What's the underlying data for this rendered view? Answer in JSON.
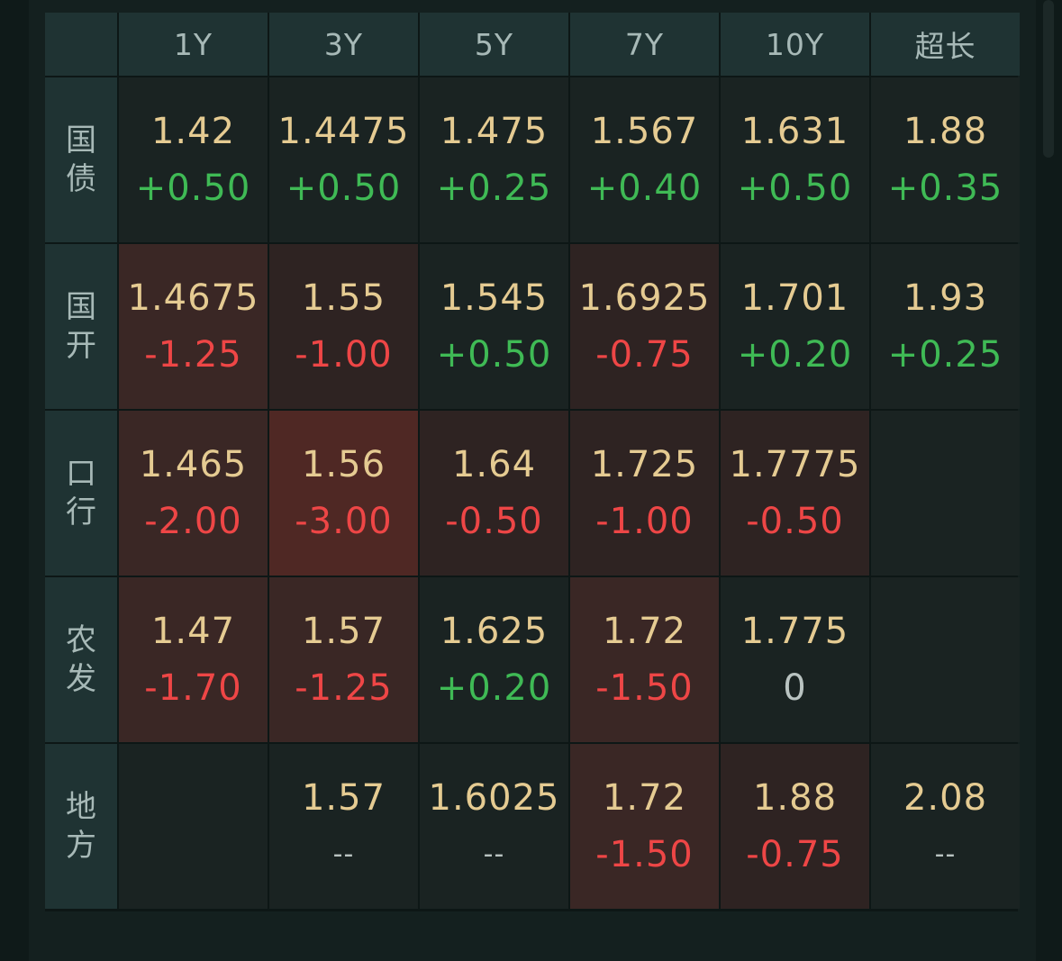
{
  "columns": [
    "1Y",
    "3Y",
    "5Y",
    "7Y",
    "10Y",
    "超长"
  ],
  "rows": [
    {
      "label": "国债",
      "chars": [
        "国",
        "债"
      ],
      "cells": [
        {
          "yield": "1.42",
          "change": "+0.50",
          "dir": "up",
          "heat": "none"
        },
        {
          "yield": "1.4475",
          "change": "+0.50",
          "dir": "up",
          "heat": "none"
        },
        {
          "yield": "1.475",
          "change": "+0.25",
          "dir": "up",
          "heat": "none"
        },
        {
          "yield": "1.567",
          "change": "+0.40",
          "dir": "up",
          "heat": "none"
        },
        {
          "yield": "1.631",
          "change": "+0.50",
          "dir": "up",
          "heat": "none"
        },
        {
          "yield": "1.88",
          "change": "+0.35",
          "dir": "up",
          "heat": "none"
        }
      ]
    },
    {
      "label": "国开",
      "chars": [
        "国",
        "开"
      ],
      "cells": [
        {
          "yield": "1.4675",
          "change": "-1.25",
          "dir": "down",
          "heat": "h2"
        },
        {
          "yield": "1.55",
          "change": "-1.00",
          "dir": "down",
          "heat": "h1"
        },
        {
          "yield": "1.545",
          "change": "+0.50",
          "dir": "up",
          "heat": "none"
        },
        {
          "yield": "1.6925",
          "change": "-0.75",
          "dir": "down",
          "heat": "h1"
        },
        {
          "yield": "1.701",
          "change": "+0.20",
          "dir": "up",
          "heat": "none"
        },
        {
          "yield": "1.93",
          "change": "+0.25",
          "dir": "up",
          "heat": "none"
        }
      ]
    },
    {
      "label": "口行",
      "chars": [
        "口",
        "行"
      ],
      "cells": [
        {
          "yield": "1.465",
          "change": "-2.00",
          "dir": "down",
          "heat": "h2"
        },
        {
          "yield": "1.56",
          "change": "-3.00",
          "dir": "down",
          "heat": "h3"
        },
        {
          "yield": "1.64",
          "change": "-0.50",
          "dir": "down",
          "heat": "h1"
        },
        {
          "yield": "1.725",
          "change": "-1.00",
          "dir": "down",
          "heat": "h1"
        },
        {
          "yield": "1.7775",
          "change": "-0.50",
          "dir": "down",
          "heat": "h1"
        },
        {
          "yield": "",
          "change": "",
          "dir": "none",
          "heat": "none"
        }
      ]
    },
    {
      "label": "农发",
      "chars": [
        "农",
        "发"
      ],
      "cells": [
        {
          "yield": "1.47",
          "change": "-1.70",
          "dir": "down",
          "heat": "h2"
        },
        {
          "yield": "1.57",
          "change": "-1.25",
          "dir": "down",
          "heat": "h2"
        },
        {
          "yield": "1.625",
          "change": "+0.20",
          "dir": "up",
          "heat": "none"
        },
        {
          "yield": "1.72",
          "change": "-1.50",
          "dir": "down",
          "heat": "h2"
        },
        {
          "yield": "1.775",
          "change": "0",
          "dir": "zero",
          "heat": "none"
        },
        {
          "yield": "",
          "change": "",
          "dir": "none",
          "heat": "none"
        }
      ]
    },
    {
      "label": "地方",
      "chars": [
        "地",
        "方"
      ],
      "cells": [
        {
          "yield": "",
          "change": "",
          "dir": "none",
          "heat": "none"
        },
        {
          "yield": "1.57",
          "change": "--",
          "dir": "na",
          "heat": "none"
        },
        {
          "yield": "1.6025",
          "change": "--",
          "dir": "na",
          "heat": "none"
        },
        {
          "yield": "1.72",
          "change": "-1.50",
          "dir": "down",
          "heat": "h2"
        },
        {
          "yield": "1.88",
          "change": "-0.75",
          "dir": "down",
          "heat": "h1"
        },
        {
          "yield": "2.08",
          "change": "--",
          "dir": "na",
          "heat": "none"
        }
      ]
    }
  ],
  "colors": {
    "yield": "#e5cb92",
    "up": "#3fba55",
    "down": "#ee4646",
    "header_bg": "#1f3333",
    "cell_bg": "#1a2322"
  }
}
